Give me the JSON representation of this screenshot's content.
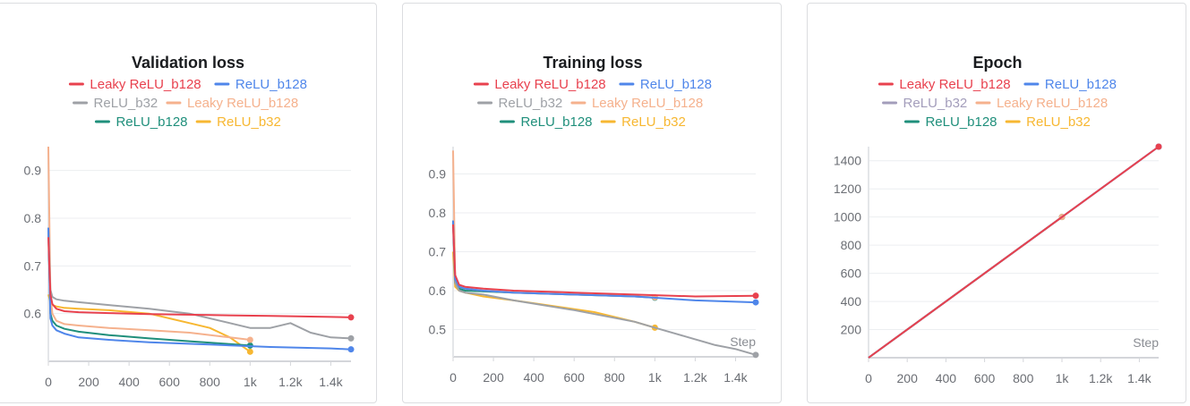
{
  "colors": {
    "red": "#e8414e",
    "blue": "#4f86ea",
    "gray": "#9ea1a6",
    "salmon": "#f5b18d",
    "teal": "#1f8f7b",
    "yellow": "#f7b731",
    "purple_gray": "#a39dbb"
  },
  "chart_data": [
    {
      "type": "line",
      "title": "Validation loss",
      "xlabel": "",
      "ylabel": "",
      "xlim": [
        0,
        1500
      ],
      "ylim": [
        0.5,
        0.95
      ],
      "x_ticks": [
        "0",
        "200",
        "400",
        "600",
        "800",
        "1k",
        "1.2k",
        "1.4k"
      ],
      "x_tick_values": [
        0,
        200,
        400,
        600,
        800,
        1000,
        1200,
        1400
      ],
      "y_ticks": [
        "0.6",
        "0.7",
        "0.8",
        "0.9"
      ],
      "y_tick_values": [
        0.6,
        0.7,
        0.8,
        0.9
      ],
      "grid": true,
      "legend_position": "top",
      "series": [
        {
          "name": "Leaky ReLU_b128",
          "color": "red",
          "x": [
            0,
            10,
            20,
            40,
            80,
            150,
            300,
            500,
            800,
            1100,
            1400,
            1500
          ],
          "y": [
            0.76,
            0.64,
            0.62,
            0.61,
            0.605,
            0.603,
            0.601,
            0.599,
            0.597,
            0.595,
            0.593,
            0.592
          ]
        },
        {
          "name": "ReLU_b128",
          "color": "blue",
          "x": [
            0,
            10,
            20,
            40,
            80,
            150,
            300,
            500,
            800,
            1100,
            1400,
            1500
          ],
          "y": [
            0.78,
            0.59,
            0.575,
            0.565,
            0.558,
            0.55,
            0.545,
            0.54,
            0.535,
            0.53,
            0.527,
            0.525
          ]
        },
        {
          "name": "ReLU_b32",
          "color": "gray",
          "x": [
            0,
            10,
            20,
            40,
            80,
            150,
            300,
            500,
            700,
            900,
            1000,
            1100,
            1200,
            1300,
            1400,
            1500
          ],
          "y": [
            0.78,
            0.65,
            0.635,
            0.63,
            0.627,
            0.624,
            0.618,
            0.61,
            0.6,
            0.58,
            0.57,
            0.57,
            0.58,
            0.56,
            0.55,
            0.548
          ]
        },
        {
          "name": "Leaky ReLU_b128",
          "color": "salmon",
          "x": [
            0,
            10,
            20,
            40,
            80,
            150,
            300,
            500,
            700,
            900,
            1000
          ],
          "y": [
            0.95,
            0.64,
            0.6,
            0.585,
            0.578,
            0.575,
            0.57,
            0.565,
            0.56,
            0.55,
            0.545
          ]
        },
        {
          "name": "ReLU_b128",
          "color": "teal",
          "x": [
            0,
            10,
            20,
            40,
            80,
            150,
            300,
            500,
            700,
            900,
            1000
          ],
          "y": [
            0.78,
            0.6,
            0.585,
            0.575,
            0.568,
            0.562,
            0.555,
            0.548,
            0.542,
            0.536,
            0.533
          ]
        },
        {
          "name": "ReLU_b32",
          "color": "yellow",
          "x": [
            0,
            10,
            20,
            40,
            80,
            150,
            300,
            500,
            600,
            700,
            800,
            900,
            1000
          ],
          "y": [
            0.64,
            0.625,
            0.618,
            0.615,
            0.612,
            0.61,
            0.607,
            0.6,
            0.59,
            0.58,
            0.57,
            0.55,
            0.52
          ]
        }
      ]
    },
    {
      "type": "line",
      "title": "Training loss",
      "xlabel": "Step",
      "ylabel": "",
      "xlim": [
        0,
        1500
      ],
      "ylim": [
        0.43,
        0.97
      ],
      "x_ticks": [
        "0",
        "200",
        "400",
        "600",
        "800",
        "1k",
        "1.2k",
        "1.4k"
      ],
      "x_tick_values": [
        0,
        200,
        400,
        600,
        800,
        1000,
        1200,
        1400
      ],
      "y_ticks": [
        "0.5",
        "0.6",
        "0.7",
        "0.8",
        "0.9"
      ],
      "y_tick_values": [
        0.5,
        0.6,
        0.7,
        0.8,
        0.9
      ],
      "grid": true,
      "legend_position": "top",
      "series": [
        {
          "name": "Leaky ReLU_b128",
          "color": "red",
          "x": [
            0,
            10,
            30,
            60,
            150,
            300,
            600,
            900,
            1200,
            1500
          ],
          "y": [
            0.77,
            0.64,
            0.615,
            0.61,
            0.605,
            0.6,
            0.595,
            0.59,
            0.585,
            0.587
          ]
        },
        {
          "name": "ReLU_b128",
          "color": "blue",
          "x": [
            0,
            10,
            30,
            60,
            150,
            300,
            600,
            900,
            1200,
            1500
          ],
          "y": [
            0.78,
            0.63,
            0.61,
            0.605,
            0.6,
            0.595,
            0.59,
            0.585,
            0.575,
            0.57
          ]
        },
        {
          "name": "ReLU_b32",
          "color": "gray",
          "x": [
            0,
            10,
            30,
            60,
            150,
            300,
            600,
            900,
            1000,
            1100,
            1200,
            1300,
            1400,
            1500
          ],
          "y": [
            0.77,
            0.62,
            0.6,
            0.595,
            0.59,
            0.575,
            0.55,
            0.52,
            0.505,
            0.49,
            0.475,
            0.46,
            0.45,
            0.435
          ]
        },
        {
          "name": "Leaky ReLU_b128",
          "color": "salmon",
          "x": [
            0,
            10,
            30,
            60,
            150,
            300,
            600,
            900,
            1000
          ],
          "y": [
            0.96,
            0.64,
            0.61,
            0.605,
            0.6,
            0.595,
            0.59,
            0.585,
            0.583
          ]
        },
        {
          "name": "ReLU_b128",
          "color": "teal",
          "x": [
            0,
            10,
            30,
            60,
            150,
            300,
            600,
            900,
            1000
          ],
          "y": [
            0.78,
            0.62,
            0.605,
            0.6,
            0.598,
            0.595,
            0.59,
            0.585,
            0.582
          ]
        },
        {
          "name": "ReLU_b32",
          "color": "yellow",
          "x": [
            0,
            10,
            30,
            60,
            150,
            300,
            500,
            700,
            900,
            1000
          ],
          "y": [
            0.7,
            0.61,
            0.6,
            0.595,
            0.585,
            0.575,
            0.56,
            0.545,
            0.52,
            0.505
          ]
        }
      ]
    },
    {
      "type": "line",
      "title": "Epoch",
      "xlabel": "Step",
      "ylabel": "",
      "xlim": [
        0,
        1500
      ],
      "ylim": [
        0,
        1500
      ],
      "x_ticks": [
        "0",
        "200",
        "400",
        "600",
        "800",
        "1k",
        "1.2k",
        "1.4k"
      ],
      "x_tick_values": [
        0,
        200,
        400,
        600,
        800,
        1000,
        1200,
        1400
      ],
      "y_ticks": [
        "200",
        "400",
        "600",
        "800",
        "1000",
        "1200",
        "1400"
      ],
      "y_tick_values": [
        200,
        400,
        600,
        800,
        1000,
        1200,
        1400
      ],
      "grid": true,
      "legend_position": "top",
      "series": [
        {
          "name": "Leaky ReLU_b128",
          "color": "red",
          "x": [
            0,
            1500
          ],
          "y": [
            0,
            1500
          ]
        },
        {
          "name": "ReLU_b128",
          "color": "blue",
          "x": [
            0,
            1500
          ],
          "y": [
            0,
            1500
          ]
        },
        {
          "name": "ReLU_b32",
          "color": "purple_gray",
          "x": [
            0,
            1500
          ],
          "y": [
            0,
            1500
          ]
        },
        {
          "name": "Leaky ReLU_b128",
          "color": "salmon",
          "x": [
            0,
            1000
          ],
          "y": [
            0,
            1000
          ]
        },
        {
          "name": "ReLU_b128",
          "color": "teal",
          "x": [
            0,
            1000
          ],
          "y": [
            0,
            1000
          ]
        },
        {
          "name": "ReLU_b32",
          "color": "yellow",
          "x": [
            0,
            1000
          ],
          "y": [
            0,
            1000
          ]
        }
      ]
    }
  ]
}
